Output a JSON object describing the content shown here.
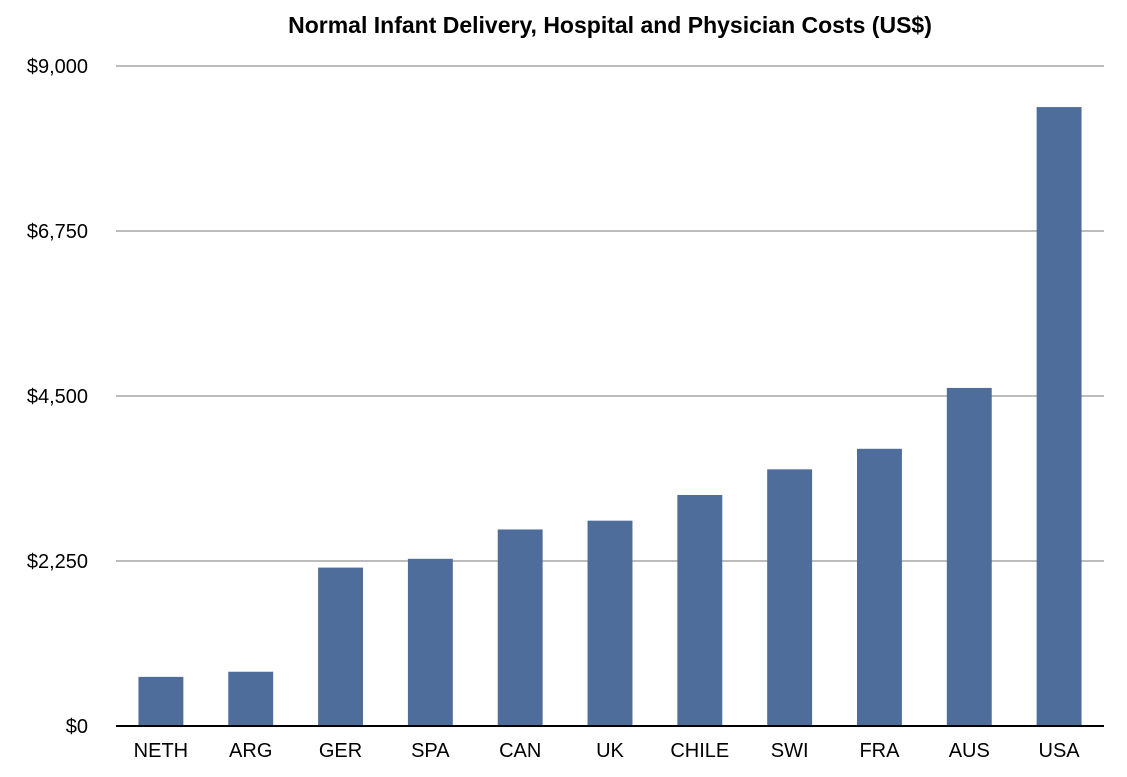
{
  "chart_data": {
    "type": "bar",
    "title": "Normal Infant Delivery, Hospital and Physician Costs (US$)",
    "xlabel": "",
    "ylabel": "",
    "categories": [
      "NETH",
      "ARG",
      "GER",
      "SPA",
      "CAN",
      "UK",
      "CHILE",
      "SWI",
      "FRA",
      "AUS",
      "USA"
    ],
    "values": [
      670,
      740,
      2160,
      2280,
      2680,
      2800,
      3150,
      3500,
      3780,
      4610,
      8440
    ],
    "ylim": [
      0,
      9000
    ],
    "yticks": [
      0,
      2250,
      4500,
      6750,
      9000
    ],
    "ytick_labels": [
      "$0",
      "$2,250",
      "$4,500",
      "$6,750",
      "$9,000"
    ],
    "grid": true,
    "bar_color": "#4e6d9b",
    "grid_color": "#a6a6a6"
  }
}
